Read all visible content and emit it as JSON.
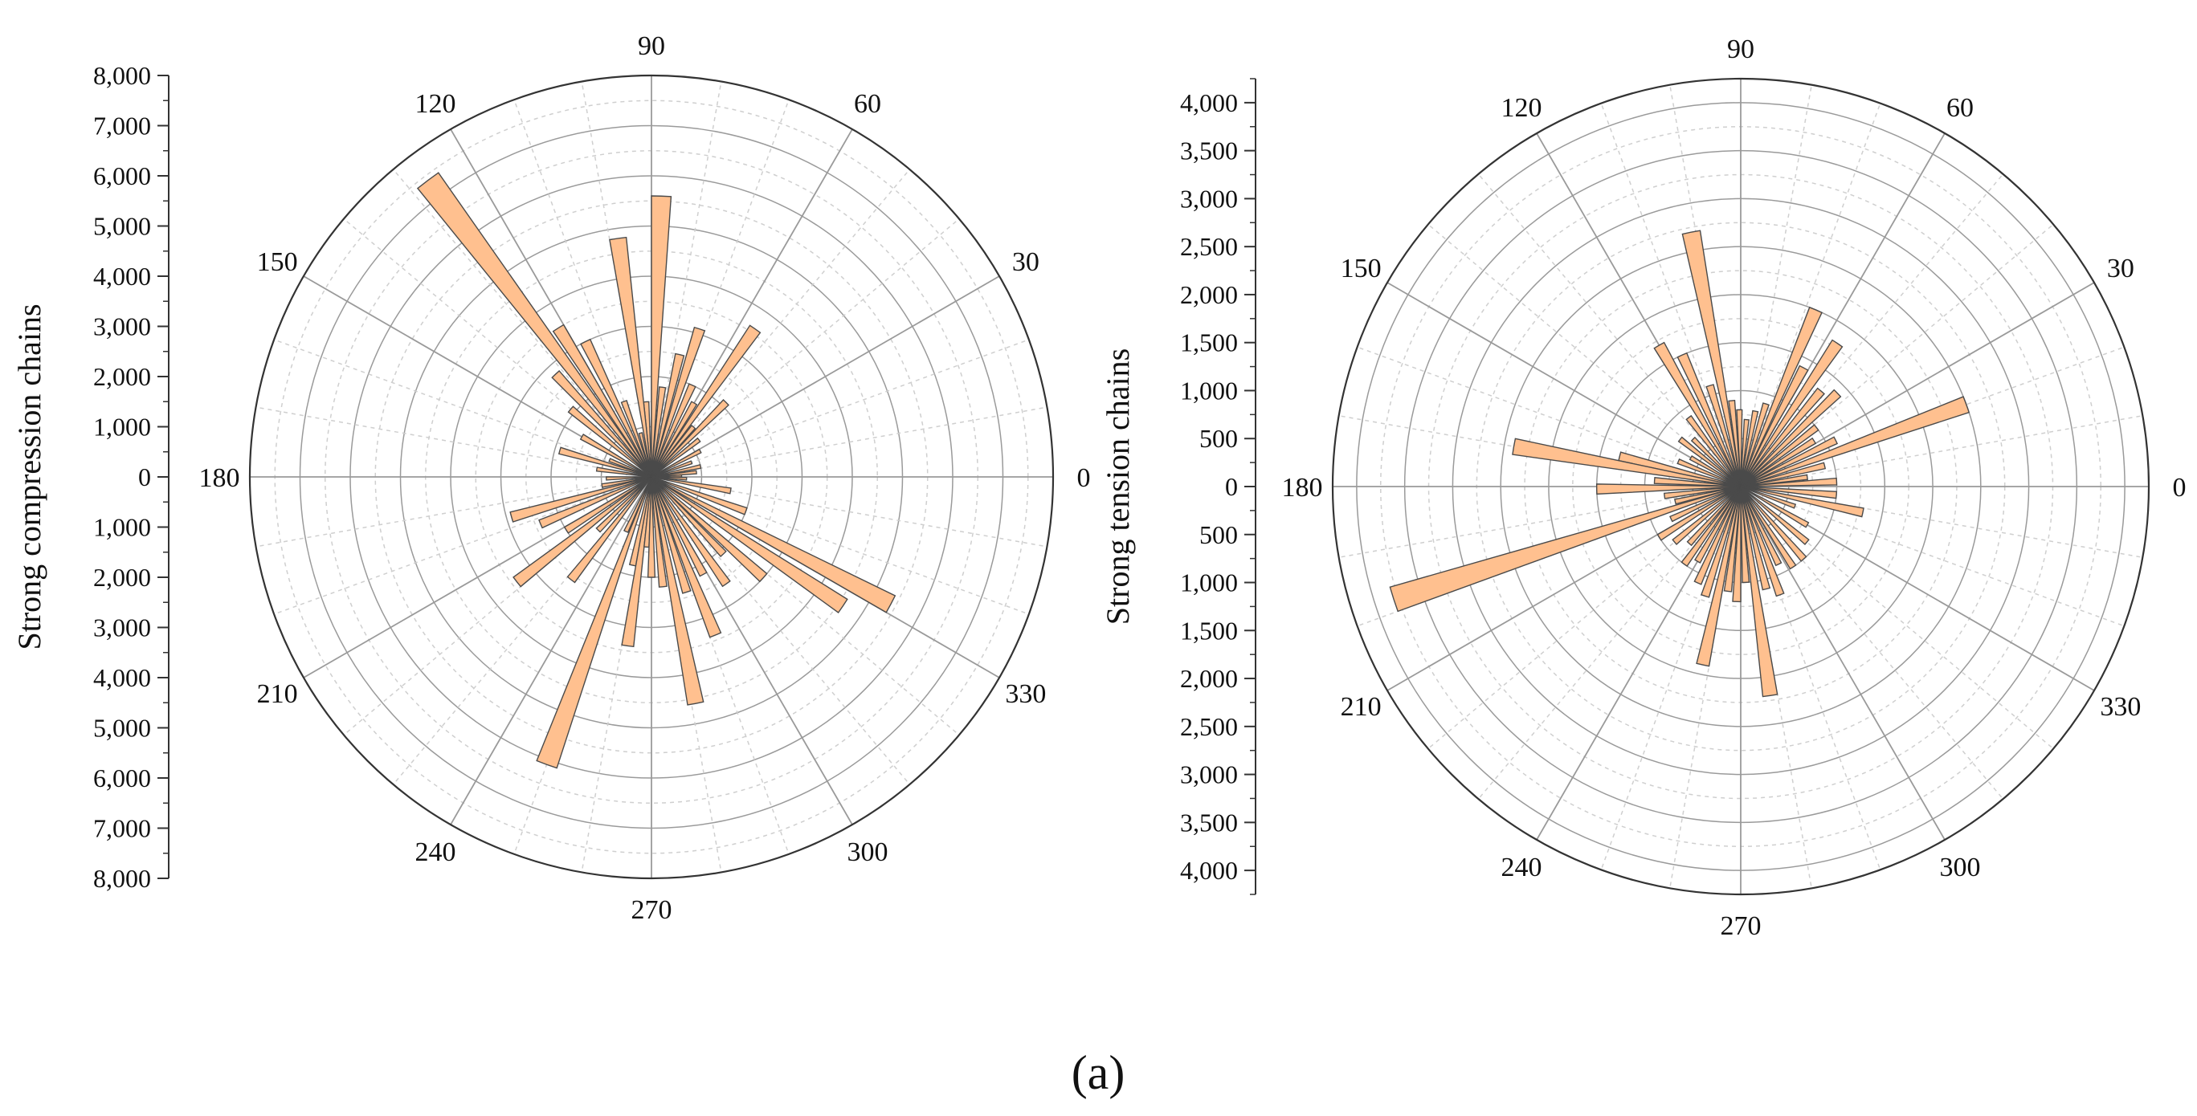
{
  "caption": "(a)",
  "colors": {
    "bar_fill": "#FFC08F",
    "bar_stroke": "#4a4a4a",
    "grid_major": "#9a9a9a",
    "grid_minor": "#cfcfcf",
    "axis": "#333333"
  },
  "chart_data": [
    {
      "type": "polar-bar",
      "ylabel": "Strong compression chains",
      "rmax": 8000,
      "r_ticks": [
        0,
        1000,
        2000,
        3000,
        4000,
        5000,
        6000,
        7000,
        8000
      ],
      "r_tick_labels_up": [
        "0",
        "1,000",
        "2,000",
        "3,000",
        "4,000",
        "5,000",
        "6,000",
        "7,000",
        "8,000"
      ],
      "r_tick_labels_down": [
        "1,000",
        "2,000",
        "3,000",
        "4,000",
        "5,000",
        "6,000",
        "7,000",
        "8,000"
      ],
      "angle_labels": [
        "0",
        "30",
        "60",
        "90",
        "120",
        "150",
        "180",
        "210",
        "240",
        "270",
        "300",
        "330"
      ],
      "bars": [
        {
          "angle": 2,
          "value": 600
        },
        {
          "angle": 6,
          "value": 900
        },
        {
          "angle": 12,
          "value": 1000
        },
        {
          "angle": 20,
          "value": 850
        },
        {
          "angle": 28,
          "value": 1100
        },
        {
          "angle": 38,
          "value": 1200
        },
        {
          "angle": 45,
          "value": 2100
        },
        {
          "angle": 50,
          "value": 1300
        },
        {
          "angle": 55,
          "value": 3600
        },
        {
          "angle": 60,
          "value": 1700
        },
        {
          "angle": 66,
          "value": 2000
        },
        {
          "angle": 72,
          "value": 3100
        },
        {
          "angle": 77,
          "value": 2500
        },
        {
          "angle": 83,
          "value": 1800
        },
        {
          "angle": 88,
          "value": 5600
        },
        {
          "angle": 94,
          "value": 1500
        },
        {
          "angle": 98,
          "value": 4800
        },
        {
          "angle": 104,
          "value": 900
        },
        {
          "angle": 110,
          "value": 1600
        },
        {
          "angle": 116,
          "value": 3000
        },
        {
          "angle": 122,
          "value": 3500
        },
        {
          "angle": 127,
          "value": 7400
        },
        {
          "angle": 133,
          "value": 2800
        },
        {
          "angle": 140,
          "value": 2100
        },
        {
          "angle": 150,
          "value": 1600
        },
        {
          "angle": 158,
          "value": 900
        },
        {
          "angle": 164,
          "value": 1900
        },
        {
          "angle": 172,
          "value": 1100
        },
        {
          "angle": 182,
          "value": 900
        },
        {
          "angle": 190,
          "value": 1000
        },
        {
          "angle": 196,
          "value": 2900
        },
        {
          "angle": 203,
          "value": 2400
        },
        {
          "angle": 212,
          "value": 2000
        },
        {
          "angle": 218,
          "value": 3400
        },
        {
          "angle": 225,
          "value": 1500
        },
        {
          "angle": 232,
          "value": 2600
        },
        {
          "angle": 245,
          "value": 1200
        },
        {
          "angle": 250,
          "value": 6100
        },
        {
          "angle": 258,
          "value": 1800
        },
        {
          "angle": 262,
          "value": 3400
        },
        {
          "angle": 266,
          "value": 1400
        },
        {
          "angle": 270,
          "value": 2000
        },
        {
          "angle": 276,
          "value": 2200
        },
        {
          "angle": 281,
          "value": 4600
        },
        {
          "angle": 287,
          "value": 2400
        },
        {
          "angle": 292,
          "value": 3400
        },
        {
          "angle": 298,
          "value": 2200
        },
        {
          "angle": 305,
          "value": 2600
        },
        {
          "angle": 313,
          "value": 2100
        },
        {
          "angle": 318,
          "value": 3000
        },
        {
          "angle": 326,
          "value": 4600
        },
        {
          "angle": 332,
          "value": 5400
        },
        {
          "angle": 340,
          "value": 2000
        },
        {
          "angle": 350,
          "value": 1600
        },
        {
          "angle": 357,
          "value": 700
        }
      ]
    },
    {
      "type": "polar-bar",
      "ylabel": "Strong tension chains",
      "rmax": 4250,
      "r_ticks": [
        0,
        500,
        1000,
        1500,
        2000,
        2500,
        3000,
        3500,
        4000
      ],
      "r_tick_labels_up": [
        "0",
        "500",
        "1,000",
        "1,500",
        "2,000",
        "2,500",
        "3,000",
        "3,500",
        "4,000"
      ],
      "r_tick_labels_down": [
        "500",
        "1,000",
        "1,500",
        "2,000",
        "2,500",
        "3,000",
        "3,500",
        "4,000"
      ],
      "angle_labels": [
        "0",
        "30",
        "60",
        "90",
        "120",
        "150",
        "180",
        "210",
        "240",
        "270",
        "300",
        "330"
      ],
      "bars": [
        {
          "angle": 3,
          "value": 1000
        },
        {
          "angle": 8,
          "value": 700
        },
        {
          "angle": 14,
          "value": 900
        },
        {
          "angle": 20,
          "value": 2500
        },
        {
          "angle": 26,
          "value": 1100
        },
        {
          "angle": 32,
          "value": 900
        },
        {
          "angle": 38,
          "value": 1000
        },
        {
          "angle": 44,
          "value": 1400
        },
        {
          "angle": 50,
          "value": 1300
        },
        {
          "angle": 56,
          "value": 1800
        },
        {
          "angle": 62,
          "value": 1400
        },
        {
          "angle": 67,
          "value": 2000
        },
        {
          "angle": 73,
          "value": 900
        },
        {
          "angle": 79,
          "value": 800
        },
        {
          "angle": 85,
          "value": 700
        },
        {
          "angle": 91,
          "value": 800
        },
        {
          "angle": 96,
          "value": 900
        },
        {
          "angle": 101,
          "value": 2700
        },
        {
          "angle": 107,
          "value": 1100
        },
        {
          "angle": 114,
          "value": 1500
        },
        {
          "angle": 120,
          "value": 1700
        },
        {
          "angle": 127,
          "value": 900
        },
        {
          "angle": 135,
          "value": 700
        },
        {
          "angle": 142,
          "value": 800
        },
        {
          "angle": 150,
          "value": 600
        },
        {
          "angle": 158,
          "value": 700
        },
        {
          "angle": 166,
          "value": 1300
        },
        {
          "angle": 170,
          "value": 2400
        },
        {
          "angle": 176,
          "value": 900
        },
        {
          "angle": 181,
          "value": 1500
        },
        {
          "angle": 187,
          "value": 800
        },
        {
          "angle": 193,
          "value": 700
        },
        {
          "angle": 198,
          "value": 3800
        },
        {
          "angle": 205,
          "value": 800
        },
        {
          "angle": 212,
          "value": 1000
        },
        {
          "angle": 220,
          "value": 900
        },
        {
          "angle": 228,
          "value": 800
        },
        {
          "angle": 234,
          "value": 1000
        },
        {
          "angle": 240,
          "value": 900
        },
        {
          "angle": 246,
          "value": 1100
        },
        {
          "angle": 252,
          "value": 1200
        },
        {
          "angle": 258,
          "value": 1900
        },
        {
          "angle": 263,
          "value": 1100
        },
        {
          "angle": 268,
          "value": 1200
        },
        {
          "angle": 273,
          "value": 1000
        },
        {
          "angle": 278,
          "value": 2200
        },
        {
          "angle": 284,
          "value": 1100
        },
        {
          "angle": 290,
          "value": 1200
        },
        {
          "angle": 296,
          "value": 900
        },
        {
          "angle": 303,
          "value": 1000
        },
        {
          "angle": 311,
          "value": 1000
        },
        {
          "angle": 320,
          "value": 900
        },
        {
          "angle": 330,
          "value": 800
        },
        {
          "angle": 340,
          "value": 600
        },
        {
          "angle": 348,
          "value": 1300
        },
        {
          "angle": 355,
          "value": 1000
        }
      ]
    }
  ]
}
